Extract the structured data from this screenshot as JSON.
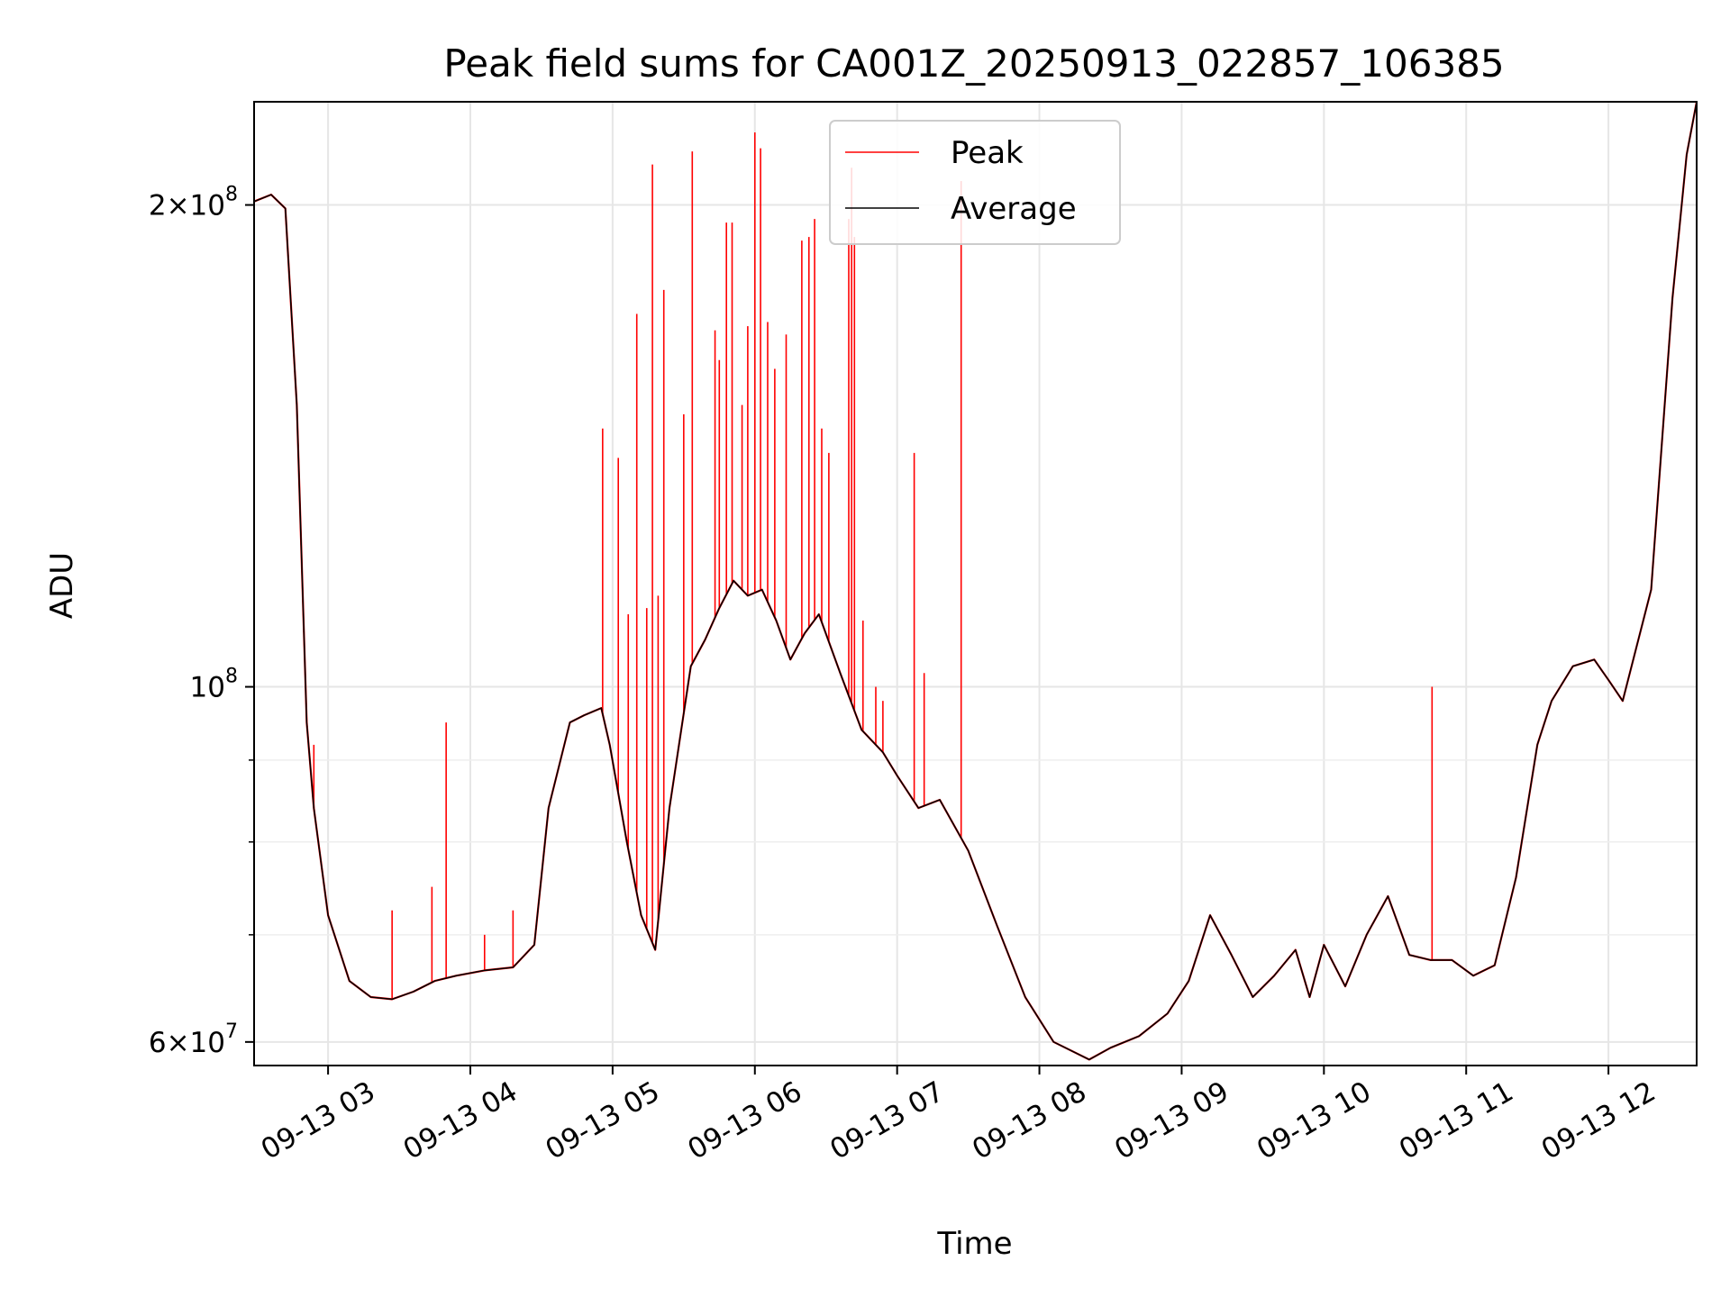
{
  "chart_data": {
    "type": "line",
    "title": "Peak field sums for CA001Z_20250913_022857_106385",
    "xlabel": "Time",
    "ylabel": "ADU",
    "yscale": "log",
    "ylim": [
      58000000,
      232000000
    ],
    "xlim_hours": [
      2.48,
      12.62
    ],
    "x_ticks": [
      {
        "label": "09-13 03",
        "hour": 3
      },
      {
        "label": "09-13 04",
        "hour": 4
      },
      {
        "label": "09-13 05",
        "hour": 5
      },
      {
        "label": "09-13 06",
        "hour": 6
      },
      {
        "label": "09-13 07",
        "hour": 7
      },
      {
        "label": "09-13 08",
        "hour": 8
      },
      {
        "label": "09-13 09",
        "hour": 9
      },
      {
        "label": "09-13 10",
        "hour": 10
      },
      {
        "label": "09-13 11",
        "hour": 11
      },
      {
        "label": "09-13 12",
        "hour": 12
      }
    ],
    "y_ticks": [
      {
        "base": "2",
        "exp": "8",
        "value": 200000000
      },
      {
        "base": "",
        "exp": "8",
        "value": 100000000
      },
      {
        "base": "6",
        "exp": "7",
        "value": 60000000
      }
    ],
    "y_minor_ticks": [
      70000000,
      80000000,
      90000000
    ],
    "grid": true,
    "legend": "upper-center",
    "series": [
      {
        "name": "Peak",
        "color": "#ff0000",
        "x": [
          2.48,
          2.6,
          2.7,
          2.78,
          2.85,
          2.9,
          3.0,
          3.15,
          3.3,
          3.45,
          3.6,
          3.75,
          3.9,
          4.1,
          4.3,
          4.45,
          4.55,
          4.7,
          4.8,
          4.92,
          4.98,
          5.1,
          5.2,
          5.3,
          5.4,
          5.55,
          5.65,
          5.75,
          5.85,
          5.95,
          6.05,
          6.15,
          6.25,
          6.35,
          6.45,
          6.6,
          6.75,
          6.9,
          7.0,
          7.15,
          7.3,
          7.5,
          7.7,
          7.9,
          8.1,
          8.35,
          8.5,
          8.7,
          8.9,
          9.05,
          9.2,
          9.35,
          9.5,
          9.65,
          9.8,
          9.9,
          10.0,
          10.15,
          10.3,
          10.45,
          10.6,
          10.75,
          10.9,
          11.05,
          11.2,
          11.35,
          11.5,
          11.6,
          11.75,
          11.9,
          12.0,
          12.1,
          12.3,
          12.45,
          12.55,
          12.62
        ],
        "values": [
          201000000,
          203000000,
          199000000,
          150000000,
          95000000,
          84000000,
          72000000,
          65500000,
          64000000,
          63800000,
          64500000,
          65500000,
          66000000,
          66500000,
          66800000,
          69000000,
          84000000,
          95000000,
          96000000,
          97000000,
          92000000,
          80000000,
          72000000,
          68500000,
          84000000,
          103000000,
          107000000,
          112000000,
          116500000,
          114000000,
          115000000,
          110000000,
          104000000,
          108000000,
          111000000,
          102000000,
          94000000,
          91000000,
          88000000,
          84000000,
          85000000,
          79000000,
          71000000,
          64000000,
          60000000,
          58500000,
          59500000,
          60500000,
          62500000,
          65500000,
          72000000,
          68000000,
          64000000,
          66000000,
          68500000,
          64000000,
          69000000,
          65000000,
          70000000,
          74000000,
          68000000,
          67500000,
          67500000,
          66000000,
          67000000,
          76000000,
          92000000,
          98000000,
          103000000,
          104000000,
          101000000,
          98000000,
          115000000,
          175000000,
          215000000,
          232000000
        ],
        "spikes": [
          {
            "x": 2.9,
            "value": 92000000
          },
          {
            "x": 3.45,
            "value": 72500000
          },
          {
            "x": 3.73,
            "value": 75000000
          },
          {
            "x": 3.83,
            "value": 95000000
          },
          {
            "x": 4.1,
            "value": 70000000
          },
          {
            "x": 4.3,
            "value": 72500000
          },
          {
            "x": 4.93,
            "value": 145000000
          },
          {
            "x": 5.04,
            "value": 139000000
          },
          {
            "x": 5.11,
            "value": 111000000
          },
          {
            "x": 5.17,
            "value": 171000000
          },
          {
            "x": 5.24,
            "value": 112000000
          },
          {
            "x": 5.28,
            "value": 212000000
          },
          {
            "x": 5.32,
            "value": 114000000
          },
          {
            "x": 5.36,
            "value": 177000000
          },
          {
            "x": 5.5,
            "value": 148000000
          },
          {
            "x": 5.56,
            "value": 216000000
          },
          {
            "x": 5.72,
            "value": 167000000
          },
          {
            "x": 5.75,
            "value": 160000000
          },
          {
            "x": 5.8,
            "value": 195000000
          },
          {
            "x": 5.84,
            "value": 195000000
          },
          {
            "x": 5.91,
            "value": 150000000
          },
          {
            "x": 5.95,
            "value": 168000000
          },
          {
            "x": 6.0,
            "value": 222000000
          },
          {
            "x": 6.04,
            "value": 217000000
          },
          {
            "x": 6.09,
            "value": 169000000
          },
          {
            "x": 6.14,
            "value": 158000000
          },
          {
            "x": 6.22,
            "value": 166000000
          },
          {
            "x": 6.33,
            "value": 190000000
          },
          {
            "x": 6.38,
            "value": 191000000
          },
          {
            "x": 6.42,
            "value": 196000000
          },
          {
            "x": 6.47,
            "value": 145000000
          },
          {
            "x": 6.52,
            "value": 140000000
          },
          {
            "x": 6.66,
            "value": 196000000
          },
          {
            "x": 6.68,
            "value": 211000000
          },
          {
            "x": 6.7,
            "value": 191000000
          },
          {
            "x": 6.76,
            "value": 110000000
          },
          {
            "x": 6.85,
            "value": 100000000
          },
          {
            "x": 6.9,
            "value": 98000000
          },
          {
            "x": 7.12,
            "value": 140000000
          },
          {
            "x": 7.19,
            "value": 102000000
          },
          {
            "x": 7.45,
            "value": 207000000
          },
          {
            "x": 10.76,
            "value": 100000000
          }
        ]
      },
      {
        "name": "Average",
        "color": "#000000"
      }
    ]
  }
}
